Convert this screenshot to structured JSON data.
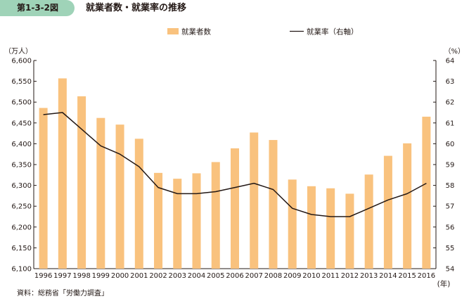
{
  "header": {
    "fig_no": "第1-3-2図",
    "title": "就業者数・就業率の推移"
  },
  "source": "資料：総務省「労働力調査」",
  "colors": {
    "bar": "#f9c27e",
    "line": "#231815",
    "badge": "#9fd3b8"
  },
  "chart_data": {
    "type": "bar",
    "categories": [
      "1996",
      "1997",
      "1998",
      "1999",
      "2000",
      "2001",
      "2002",
      "2003",
      "2004",
      "2005",
      "2006",
      "2007",
      "2008",
      "2009",
      "2010",
      "2011",
      "2012",
      "2013",
      "2014",
      "2015",
      "2016"
    ],
    "series": [
      {
        "name": "就業者数",
        "type": "bar",
        "axis": "left",
        "values": [
          6486,
          6557,
          6514,
          6462,
          6446,
          6412,
          6330,
          6316,
          6329,
          6356,
          6389,
          6427,
          6409,
          6314,
          6298,
          6293,
          6280,
          6326,
          6371,
          6401,
          6465
        ]
      },
      {
        "name": "就業率（右軸）",
        "type": "line",
        "axis": "right",
        "values": [
          61.4,
          61.5,
          60.7,
          59.9,
          59.5,
          58.9,
          57.9,
          57.6,
          57.6,
          57.7,
          57.9,
          58.1,
          57.8,
          56.9,
          56.6,
          56.5,
          56.5,
          56.9,
          57.3,
          57.6,
          58.1
        ]
      }
    ],
    "y_left": {
      "unit": "（万人）",
      "min": 6100,
      "max": 6600,
      "ticks": [
        "6,100",
        "6,150",
        "6,200",
        "6,250",
        "6,300",
        "6,350",
        "6,400",
        "6,450",
        "6,500",
        "6,550",
        "6,600"
      ]
    },
    "y_right": {
      "unit": "（%）",
      "min": 54,
      "max": 64,
      "ticks": [
        "54",
        "55",
        "56",
        "57",
        "58",
        "59",
        "60",
        "61",
        "62",
        "63",
        "64"
      ]
    },
    "x_unit": "(年)",
    "legend_position": "top",
    "grid": false
  }
}
